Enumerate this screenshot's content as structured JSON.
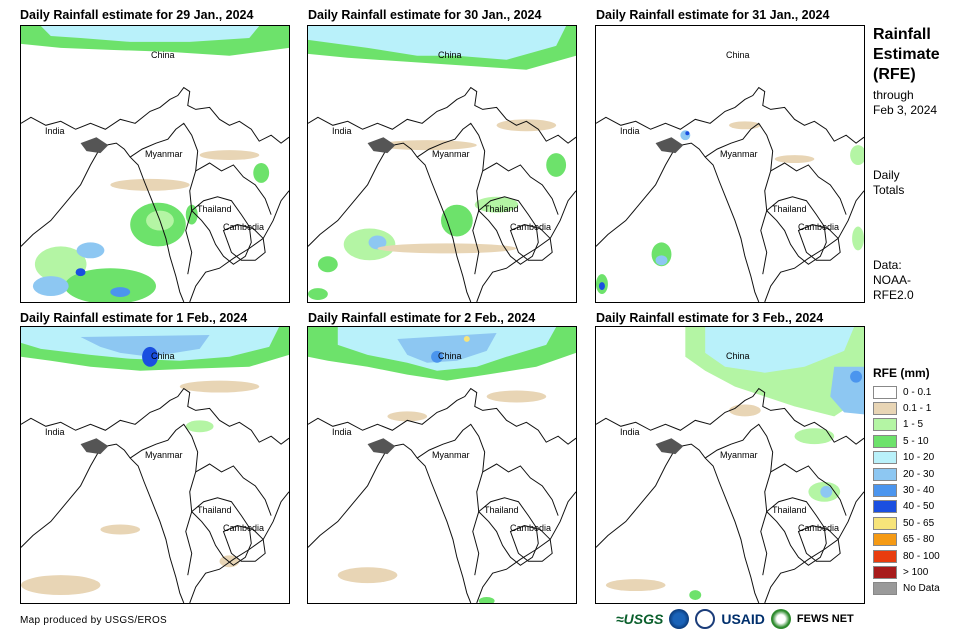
{
  "panels": [
    {
      "title": "Daily Rainfall estimate for 29 Jan., 2024",
      "labels": {
        "china": "China",
        "india": "India",
        "myanmar": "Myanmar",
        "thailand": "Thailand",
        "cambodia": "Cambodia"
      }
    },
    {
      "title": "Daily Rainfall estimate for 30 Jan., 2024",
      "labels": {
        "china": "China",
        "india": "India",
        "myanmar": "Myanmar",
        "thailand": "Thailand",
        "cambodia": "Cambodia"
      }
    },
    {
      "title": "Daily Rainfall estimate for 31 Jan., 2024",
      "labels": {
        "china": "China",
        "india": "India",
        "myanmar": "Myanmar",
        "thailand": "Thailand",
        "cambodia": "Cambodia"
      }
    },
    {
      "title": "Daily Rainfall estimate for 1 Feb., 2024",
      "labels": {
        "china": "China",
        "india": "India",
        "myanmar": "Myanmar",
        "thailand": "Thailand",
        "cambodia": "Cambodia"
      }
    },
    {
      "title": "Daily Rainfall estimate for 2 Feb., 2024",
      "labels": {
        "china": "China",
        "india": "India",
        "myanmar": "Myanmar",
        "thailand": "Thailand",
        "cambodia": "Cambodia"
      }
    },
    {
      "title": "Daily Rainfall estimate for 3 Feb., 2024",
      "labels": {
        "china": "China",
        "india": "India",
        "myanmar": "Myanmar",
        "thailand": "Thailand",
        "cambodia": "Cambodia"
      }
    }
  ],
  "sidebar": {
    "title_lines": [
      "Rainfall",
      "Estimate",
      "(RFE)"
    ],
    "through_label": "through",
    "through_date": "Feb 3, 2024",
    "daily_lines": [
      "Daily",
      "Totals"
    ],
    "data_lines": [
      "Data:",
      "NOAA-",
      "RFE2.0"
    ]
  },
  "legend": {
    "title": "RFE (mm)",
    "items": [
      {
        "label": "0 - 0.1",
        "color": "#ffffff"
      },
      {
        "label": "0.1 - 1",
        "color": "#e8d5b5"
      },
      {
        "label": "1 - 5",
        "color": "#b4f5a4"
      },
      {
        "label": "5 - 10",
        "color": "#6de26b"
      },
      {
        "label": "10 - 20",
        "color": "#b9f1fa"
      },
      {
        "label": "20 - 30",
        "color": "#8dc7f2"
      },
      {
        "label": "30 - 40",
        "color": "#4b95ee"
      },
      {
        "label": "40 - 50",
        "color": "#1a4fe0"
      },
      {
        "label": "50 - 65",
        "color": "#f7e47a"
      },
      {
        "label": "65 - 80",
        "color": "#f59a14"
      },
      {
        "label": "80 - 100",
        "color": "#e83c0e"
      },
      {
        "label": "> 100",
        "color": "#a81b1b"
      },
      {
        "label": "No Data",
        "color": "#9a9a9a"
      }
    ]
  },
  "footer": {
    "credit": "Map produced by USGS/EROS",
    "logos": {
      "usgs": "≈USGS",
      "usaid": "USAID",
      "fews": "FEWS NET"
    }
  }
}
